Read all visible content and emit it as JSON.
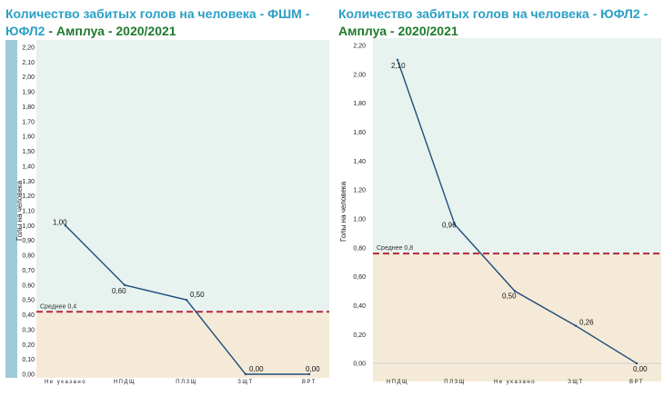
{
  "chart_data": [
    {
      "type": "line",
      "title_part1": "Количество забитых голов на человека - ФШМ - ЮФЛ2",
      "title_part2": "- Амплуа - 2020/2021",
      "ylabel": "Голы на человека",
      "ylim": [
        0,
        2.2
      ],
      "yticks": [
        "0,00",
        "0,10",
        "0,20",
        "0,30",
        "0,40",
        "0,50",
        "0,60",
        "0,70",
        "0,80",
        "0,90",
        "1,00",
        "1,10",
        "1,20",
        "1,30",
        "1,40",
        "1,50",
        "1,60",
        "1,70",
        "1,80",
        "1,90",
        "2,00",
        "2,10",
        "2,20"
      ],
      "categories": [
        "Не указано",
        "НПДЩ",
        "ПЛЗЩ",
        "ЗЩТ",
        "ВРТ"
      ],
      "values": [
        1.0,
        0.6,
        0.5,
        0.0,
        0.0
      ],
      "value_labels": [
        "1,00",
        "0,60",
        "0,50",
        "0,00",
        "0,00"
      ],
      "average": 0.42,
      "average_label": "Среднее 0,4",
      "colors": {
        "above": "#e8f3f0",
        "below": "#f5ead8",
        "line": "#1f4e79",
        "avg": "#b5283a",
        "axis_bar": "#9fcad9"
      }
    },
    {
      "type": "line",
      "title_part1": "Количество забитых голов на человека - ЮФЛ2 -",
      "title_part2": "Амплуа - 2020/2021",
      "ylabel": "Голы на человека",
      "ylim": [
        -0.1,
        2.2
      ],
      "yticks": [
        "0,00",
        "0,20",
        "0,40",
        "0,60",
        "0,80",
        "1,00",
        "1,20",
        "1,40",
        "1,60",
        "1,80",
        "2,00",
        "2,20"
      ],
      "categories": [
        "НПДЩ",
        "ПЛЗЩ",
        "Не указано",
        "ЗЩТ",
        "ВРТ"
      ],
      "values": [
        2.1,
        0.96,
        0.5,
        0.26,
        0.0
      ],
      "value_labels": [
        "2,10",
        "0,96",
        "0,50",
        "0,26",
        "0,00"
      ],
      "average": 0.76,
      "average_label": "Среднее 0,8",
      "colors": {
        "above": "#e8f3f0",
        "below": "#f5ead8",
        "line": "#1f4e79",
        "avg": "#b5283a"
      }
    }
  ]
}
